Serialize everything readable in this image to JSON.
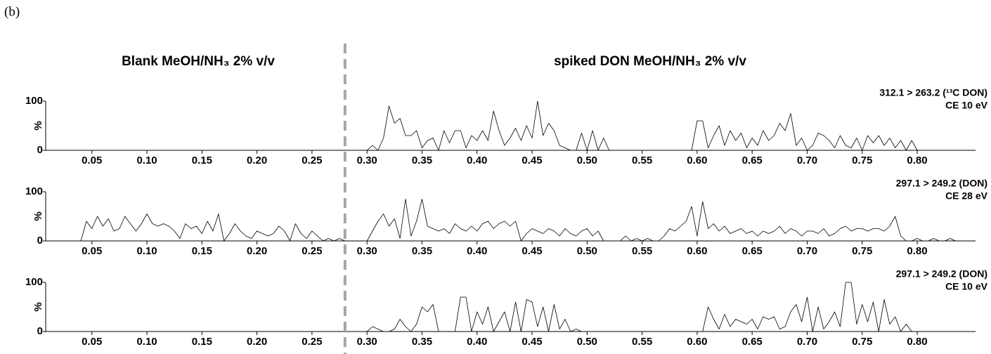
{
  "label": "(b)",
  "headers": [
    "Blank MeOH/NH₃ 2% v/v",
    "spiked DON MeOH/NH₃ 2% v/v"
  ],
  "divider_x": 0.28,
  "chart_data": [
    {
      "type": "line",
      "transition": "312.1 > 263.2 (¹³C DON)",
      "energy": "CE 10 eV",
      "ylabel": "%",
      "xlim": [
        0.008,
        0.853
      ],
      "xticks": [
        0.05,
        {
          "value": 0.1,
          "label": "0.10"
        },
        0.15,
        {
          "value": 0.2,
          "label": "0.20"
        },
        0.25,
        {
          "value": 0.3,
          "label": "0.30"
        },
        0.35,
        {
          "value": 0.4,
          "label": "0.40"
        },
        0.45,
        {
          "value": 0.5,
          "label": "0.50"
        },
        0.55,
        {
          "value": 0.6,
          "label": "0.60"
        },
        0.65,
        {
          "value": 0.7,
          "label": "0.70"
        },
        0.75,
        {
          "value": 0.8,
          "label": "0.80"
        }
      ],
      "ylim": [
        0,
        100
      ],
      "yticks": [
        0,
        100
      ],
      "x": [
        0.01,
        0.015,
        0.02,
        0.025,
        0.03,
        0.035,
        0.04,
        0.045,
        0.05,
        0.055,
        0.06,
        0.065,
        0.07,
        0.075,
        0.08,
        0.085,
        0.09,
        0.095,
        0.1,
        0.105,
        0.11,
        0.115,
        0.12,
        0.125,
        0.13,
        0.135,
        0.14,
        0.145,
        0.15,
        0.155,
        0.16,
        0.165,
        0.17,
        0.175,
        0.18,
        0.185,
        0.19,
        0.195,
        0.2,
        0.205,
        0.21,
        0.215,
        0.22,
        0.225,
        0.23,
        0.235,
        0.24,
        0.245,
        0.25,
        0.255,
        0.26,
        0.265,
        0.27,
        0.275,
        0.28,
        0.285,
        0.29,
        0.295,
        0.3,
        0.305,
        0.31,
        0.315,
        0.32,
        0.325,
        0.33,
        0.335,
        0.34,
        0.345,
        0.35,
        0.355,
        0.36,
        0.365,
        0.37,
        0.375,
        0.38,
        0.385,
        0.39,
        0.395,
        0.4,
        0.405,
        0.41,
        0.415,
        0.42,
        0.425,
        0.43,
        0.435,
        0.44,
        0.445,
        0.45,
        0.455,
        0.46,
        0.465,
        0.47,
        0.475,
        0.48,
        0.485,
        0.49,
        0.495,
        0.5,
        0.505,
        0.51,
        0.515,
        0.52,
        0.525,
        0.53,
        0.535,
        0.54,
        0.545,
        0.55,
        0.555,
        0.56,
        0.565,
        0.57,
        0.575,
        0.58,
        0.585,
        0.59,
        0.595,
        0.6,
        0.605,
        0.61,
        0.615,
        0.62,
        0.625,
        0.63,
        0.635,
        0.64,
        0.645,
        0.65,
        0.655,
        0.66,
        0.665,
        0.67,
        0.675,
        0.68,
        0.685,
        0.69,
        0.695,
        0.7,
        0.705,
        0.71,
        0.715,
        0.72,
        0.725,
        0.73,
        0.735,
        0.74,
        0.745,
        0.75,
        0.755,
        0.76,
        0.765,
        0.77,
        0.775,
        0.78,
        0.785,
        0.79,
        0.795,
        0.8,
        0.805,
        0.81,
        0.815,
        0.82,
        0.825,
        0.83,
        0.835,
        0.84,
        0.845
      ],
      "series": [
        {
          "color": "#000000",
          "values": [
            0,
            0,
            0,
            0,
            0,
            0,
            0,
            0,
            0,
            0,
            0,
            0,
            0,
            0,
            0,
            0,
            0,
            0,
            0,
            0,
            0,
            0,
            0,
            0,
            0,
            0,
            0,
            0,
            0,
            0,
            0,
            0,
            0,
            0,
            0,
            0,
            0,
            0,
            0,
            0,
            0,
            0,
            0,
            0,
            0,
            0,
            0,
            0,
            0,
            0,
            0,
            0,
            0,
            0,
            0,
            0,
            0,
            0,
            0,
            10,
            0,
            25,
            90,
            55,
            65,
            30,
            30,
            40,
            5,
            20,
            25,
            0,
            40,
            15,
            40,
            40,
            5,
            30,
            20,
            40,
            20,
            80,
            40,
            10,
            25,
            45,
            20,
            50,
            25,
            100,
            30,
            55,
            40,
            10,
            5,
            0,
            0,
            35,
            0,
            40,
            0,
            25,
            0,
            0,
            0,
            0,
            0,
            0,
            0,
            0,
            0,
            0,
            0,
            0,
            0,
            0,
            0,
            0,
            60,
            60,
            5,
            30,
            50,
            10,
            40,
            20,
            35,
            5,
            25,
            10,
            40,
            20,
            30,
            55,
            40,
            75,
            10,
            25,
            0,
            10,
            35,
            30,
            20,
            5,
            30,
            10,
            5,
            25,
            0,
            30,
            15,
            30,
            10,
            25,
            5,
            20,
            0,
            20,
            0,
            0,
            0,
            0,
            0,
            0,
            0,
            0,
            0,
            0
          ]
        }
      ]
    },
    {
      "type": "line",
      "transition": "297.1 > 249.2 (DON)",
      "energy": "CE 28 eV",
      "ylabel": "%",
      "xlim": [
        0.008,
        0.853
      ],
      "xticks": [
        0.05,
        {
          "value": 0.1,
          "label": "0.10"
        },
        0.15,
        {
          "value": 0.2,
          "label": "0.20"
        },
        0.25,
        {
          "value": 0.3,
          "label": "0.30"
        },
        0.35,
        {
          "value": 0.4,
          "label": "0.40"
        },
        0.45,
        {
          "value": 0.5,
          "label": "0.50"
        },
        0.55,
        {
          "value": 0.6,
          "label": "0.60"
        },
        0.65,
        {
          "value": 0.7,
          "label": "0.70"
        },
        0.75,
        {
          "value": 0.8,
          "label": "0.80"
        }
      ],
      "ylim": [
        0,
        100
      ],
      "yticks": [
        0,
        100
      ],
      "x": [
        0.01,
        0.015,
        0.02,
        0.025,
        0.03,
        0.035,
        0.04,
        0.045,
        0.05,
        0.055,
        0.06,
        0.065,
        0.07,
        0.075,
        0.08,
        0.085,
        0.09,
        0.095,
        0.1,
        0.105,
        0.11,
        0.115,
        0.12,
        0.125,
        0.13,
        0.135,
        0.14,
        0.145,
        0.15,
        0.155,
        0.16,
        0.165,
        0.17,
        0.175,
        0.18,
        0.185,
        0.19,
        0.195,
        0.2,
        0.205,
        0.21,
        0.215,
        0.22,
        0.225,
        0.23,
        0.235,
        0.24,
        0.245,
        0.25,
        0.255,
        0.26,
        0.265,
        0.27,
        0.275,
        0.28,
        0.285,
        0.29,
        0.295,
        0.3,
        0.305,
        0.31,
        0.315,
        0.32,
        0.325,
        0.33,
        0.335,
        0.34,
        0.345,
        0.35,
        0.355,
        0.36,
        0.365,
        0.37,
        0.375,
        0.38,
        0.385,
        0.39,
        0.395,
        0.4,
        0.405,
        0.41,
        0.415,
        0.42,
        0.425,
        0.43,
        0.435,
        0.44,
        0.445,
        0.45,
        0.455,
        0.46,
        0.465,
        0.47,
        0.475,
        0.48,
        0.485,
        0.49,
        0.495,
        0.5,
        0.505,
        0.51,
        0.515,
        0.52,
        0.525,
        0.53,
        0.535,
        0.54,
        0.545,
        0.55,
        0.555,
        0.56,
        0.565,
        0.57,
        0.575,
        0.58,
        0.585,
        0.59,
        0.595,
        0.6,
        0.605,
        0.61,
        0.615,
        0.62,
        0.625,
        0.63,
        0.635,
        0.64,
        0.645,
        0.65,
        0.655,
        0.66,
        0.665,
        0.67,
        0.675,
        0.68,
        0.685,
        0.69,
        0.695,
        0.7,
        0.705,
        0.71,
        0.715,
        0.72,
        0.725,
        0.73,
        0.735,
        0.74,
        0.745,
        0.75,
        0.755,
        0.76,
        0.765,
        0.77,
        0.775,
        0.78,
        0.785,
        0.79,
        0.795,
        0.8,
        0.805,
        0.81,
        0.815,
        0.82,
        0.825,
        0.83,
        0.835,
        0.84,
        0.845
      ],
      "series": [
        {
          "color": "#000000",
          "values": [
            0,
            0,
            0,
            0,
            0,
            0,
            0,
            40,
            25,
            50,
            30,
            45,
            20,
            25,
            50,
            35,
            20,
            35,
            55,
            35,
            30,
            35,
            30,
            20,
            5,
            35,
            25,
            30,
            15,
            40,
            20,
            55,
            0,
            15,
            35,
            20,
            10,
            5,
            20,
            15,
            10,
            15,
            30,
            20,
            0,
            35,
            15,
            5,
            20,
            10,
            0,
            5,
            0,
            5,
            0,
            0,
            0,
            0,
            0,
            20,
            40,
            55,
            30,
            45,
            5,
            85,
            10,
            40,
            85,
            30,
            25,
            20,
            25,
            15,
            35,
            25,
            20,
            30,
            20,
            35,
            40,
            25,
            35,
            40,
            30,
            40,
            0,
            15,
            25,
            20,
            15,
            25,
            20,
            10,
            25,
            15,
            10,
            20,
            25,
            10,
            20,
            0,
            0,
            0,
            0,
            10,
            0,
            5,
            0,
            5,
            0,
            0,
            10,
            25,
            20,
            30,
            40,
            70,
            10,
            80,
            25,
            35,
            20,
            30,
            15,
            20,
            25,
            15,
            20,
            10,
            20,
            15,
            20,
            30,
            15,
            25,
            20,
            10,
            20,
            20,
            15,
            25,
            10,
            15,
            25,
            30,
            20,
            25,
            25,
            20,
            25,
            25,
            20,
            30,
            50,
            10,
            0,
            0,
            5,
            0,
            0,
            5,
            0,
            0,
            5,
            0,
            0,
            0
          ]
        }
      ]
    },
    {
      "type": "line",
      "transition": "297.1 > 249.2 (DON)",
      "energy": "CE 10 eV",
      "ylabel": "%",
      "xlim": [
        0.008,
        0.853
      ],
      "xticks": [
        0.05,
        {
          "value": 0.1,
          "label": "0.10"
        },
        0.15,
        {
          "value": 0.2,
          "label": "0.20"
        },
        0.25,
        {
          "value": 0.3,
          "label": "0.30"
        },
        0.35,
        {
          "value": 0.4,
          "label": "0.40"
        },
        0.45,
        {
          "value": 0.5,
          "label": "0.50"
        },
        0.55,
        {
          "value": 0.6,
          "label": "0.60"
        },
        0.65,
        {
          "value": 0.7,
          "label": "0.70"
        },
        0.75,
        {
          "value": 0.8,
          "label": "0.80"
        }
      ],
      "ylim": [
        0,
        100
      ],
      "yticks": [
        0,
        100
      ],
      "x": [
        0.01,
        0.015,
        0.02,
        0.025,
        0.03,
        0.035,
        0.04,
        0.045,
        0.05,
        0.055,
        0.06,
        0.065,
        0.07,
        0.075,
        0.08,
        0.085,
        0.09,
        0.095,
        0.1,
        0.105,
        0.11,
        0.115,
        0.12,
        0.125,
        0.13,
        0.135,
        0.14,
        0.145,
        0.15,
        0.155,
        0.16,
        0.165,
        0.17,
        0.175,
        0.18,
        0.185,
        0.19,
        0.195,
        0.2,
        0.205,
        0.21,
        0.215,
        0.22,
        0.225,
        0.23,
        0.235,
        0.24,
        0.245,
        0.25,
        0.255,
        0.26,
        0.265,
        0.27,
        0.275,
        0.28,
        0.285,
        0.29,
        0.295,
        0.3,
        0.305,
        0.31,
        0.315,
        0.32,
        0.325,
        0.33,
        0.335,
        0.34,
        0.345,
        0.35,
        0.355,
        0.36,
        0.365,
        0.37,
        0.375,
        0.38,
        0.385,
        0.39,
        0.395,
        0.4,
        0.405,
        0.41,
        0.415,
        0.42,
        0.425,
        0.43,
        0.435,
        0.44,
        0.445,
        0.45,
        0.455,
        0.46,
        0.465,
        0.47,
        0.475,
        0.48,
        0.485,
        0.49,
        0.495,
        0.5,
        0.505,
        0.51,
        0.515,
        0.52,
        0.525,
        0.53,
        0.535,
        0.54,
        0.545,
        0.55,
        0.555,
        0.56,
        0.565,
        0.57,
        0.575,
        0.58,
        0.585,
        0.59,
        0.595,
        0.6,
        0.605,
        0.61,
        0.615,
        0.62,
        0.625,
        0.63,
        0.635,
        0.64,
        0.645,
        0.65,
        0.655,
        0.66,
        0.665,
        0.67,
        0.675,
        0.68,
        0.685,
        0.69,
        0.695,
        0.7,
        0.705,
        0.71,
        0.715,
        0.72,
        0.725,
        0.73,
        0.735,
        0.74,
        0.745,
        0.75,
        0.755,
        0.76,
        0.765,
        0.77,
        0.775,
        0.78,
        0.785,
        0.79,
        0.795,
        0.8,
        0.805,
        0.81,
        0.815,
        0.82,
        0.825,
        0.83,
        0.835,
        0.84,
        0.845
      ],
      "series": [
        {
          "color": "#000000",
          "values": [
            0,
            0,
            0,
            0,
            0,
            0,
            0,
            0,
            0,
            0,
            0,
            0,
            0,
            0,
            0,
            0,
            0,
            0,
            0,
            0,
            0,
            0,
            0,
            0,
            0,
            0,
            0,
            0,
            0,
            0,
            0,
            0,
            0,
            0,
            0,
            0,
            0,
            0,
            0,
            0,
            0,
            0,
            0,
            0,
            0,
            0,
            0,
            0,
            0,
            0,
            0,
            0,
            0,
            0,
            0,
            0,
            0,
            0,
            0,
            10,
            5,
            0,
            0,
            5,
            25,
            10,
            0,
            15,
            50,
            40,
            55,
            0,
            0,
            0,
            0,
            70,
            70,
            0,
            40,
            15,
            50,
            0,
            20,
            40,
            0,
            60,
            0,
            65,
            60,
            10,
            50,
            0,
            55,
            5,
            25,
            0,
            5,
            0,
            0,
            0,
            0,
            0,
            0,
            0,
            0,
            0,
            0,
            0,
            0,
            0,
            0,
            0,
            0,
            0,
            0,
            0,
            0,
            0,
            0,
            0,
            50,
            25,
            5,
            35,
            10,
            25,
            20,
            15,
            25,
            5,
            30,
            25,
            30,
            5,
            10,
            40,
            55,
            20,
            70,
            0,
            50,
            5,
            20,
            40,
            10,
            100,
            100,
            15,
            55,
            20,
            60,
            0,
            65,
            15,
            30,
            0,
            15,
            0,
            0,
            0,
            0,
            0,
            0,
            0,
            0,
            0,
            0,
            0
          ]
        }
      ]
    }
  ]
}
